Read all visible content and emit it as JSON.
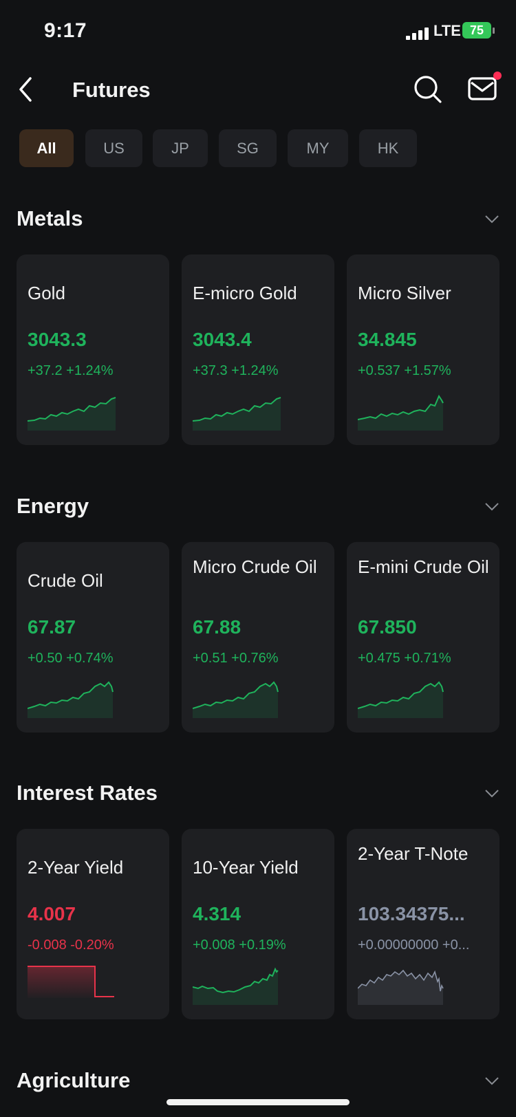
{
  "status": {
    "time": "9:17",
    "network": "LTE",
    "battery": "75"
  },
  "header": {
    "title": "Futures",
    "back_icon": "back-chevron-icon",
    "search_icon": "search-icon",
    "mail_icon": "mail-icon"
  },
  "tabs": [
    {
      "label": "All",
      "active": true
    },
    {
      "label": "US",
      "active": false
    },
    {
      "label": "JP",
      "active": false
    },
    {
      "label": "SG",
      "active": false
    },
    {
      "label": "MY",
      "active": false
    },
    {
      "label": "HK",
      "active": false
    }
  ],
  "sections": [
    {
      "title": "Metals",
      "cards": [
        {
          "name": "Gold",
          "price": "3043.3",
          "change": "+37.2 +1.24%",
          "trend": "up"
        },
        {
          "name": "E-micro Gold",
          "price": "3043.4",
          "change": "+37.3 +1.24%",
          "trend": "up"
        },
        {
          "name": "Micro Silver",
          "price": "34.845",
          "change": "+0.537 +1.57%",
          "trend": "up"
        }
      ]
    },
    {
      "title": "Energy",
      "cards": [
        {
          "name": "Crude Oil",
          "price": "67.87",
          "change": "+0.50 +0.74%",
          "trend": "up"
        },
        {
          "name": "Micro Crude Oil",
          "price": "67.88",
          "change": "+0.51 +0.76%",
          "trend": "up"
        },
        {
          "name": "E-mini Crude Oil",
          "price": "67.850",
          "change": "+0.475 +0.71%",
          "trend": "up"
        }
      ]
    },
    {
      "title": "Interest Rates",
      "cards": [
        {
          "name": "2-Year Yield",
          "price": "4.007",
          "change": "-0.008 -0.20%",
          "trend": "down"
        },
        {
          "name": "10-Year Yield",
          "price": "4.314",
          "change": "+0.008 +0.19%",
          "trend": "up"
        },
        {
          "name": "2-Year T-Note",
          "price": "103.34375...",
          "change": "+0.00000000 +0...",
          "trend": "flat"
        }
      ]
    },
    {
      "title": "Agriculture",
      "cards": []
    }
  ],
  "colors": {
    "up": "#1fb35c",
    "down": "#e8334a",
    "flat": "#8a93a6",
    "active_tab": "#3a2a1d"
  }
}
